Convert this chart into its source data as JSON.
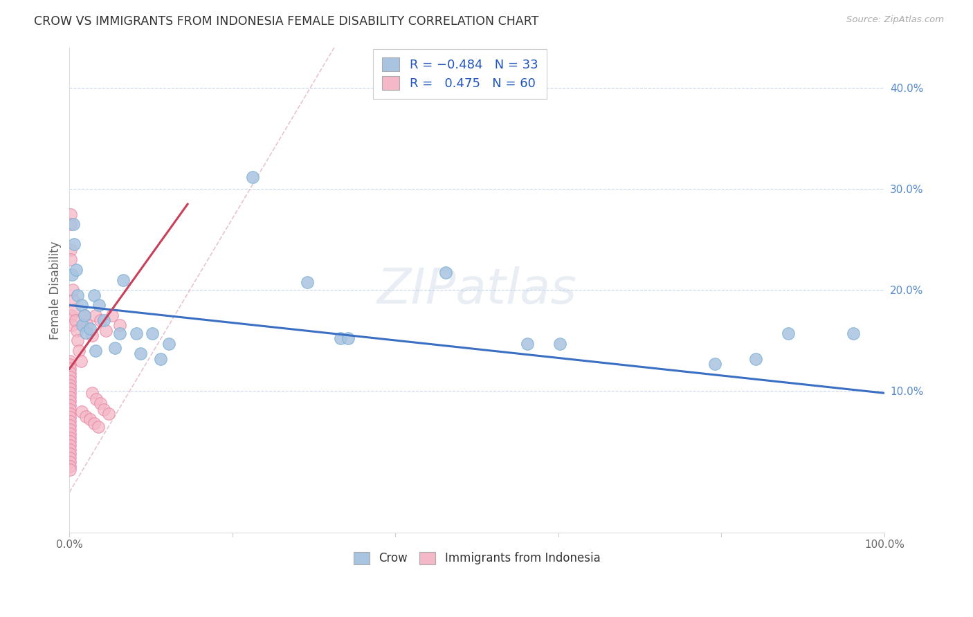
{
  "title": "CROW VS IMMIGRANTS FROM INDONESIA FEMALE DISABILITY CORRELATION CHART",
  "source": "Source: ZipAtlas.com",
  "ylabel": "Female Disability",
  "right_yticks": [
    "10.0%",
    "20.0%",
    "30.0%",
    "40.0%"
  ],
  "right_ytick_vals": [
    0.1,
    0.2,
    0.3,
    0.4
  ],
  "crow_color": "#a8c4e0",
  "crow_edge_color": "#7bafd4",
  "indo_color": "#f4b8c8",
  "indo_edge_color": "#e87fa0",
  "crow_line_color": "#3a6fc4",
  "indo_line_color": "#c8405a",
  "dashed_line_color": "#e0b0c0",
  "crow_R": -0.484,
  "crow_N": 33,
  "indo_R": 0.475,
  "indo_N": 60,
  "crow_points": [
    [
      0.003,
      0.215
    ],
    [
      0.005,
      0.265
    ],
    [
      0.006,
      0.245
    ],
    [
      0.008,
      0.22
    ],
    [
      0.01,
      0.195
    ],
    [
      0.015,
      0.185
    ],
    [
      0.016,
      0.165
    ],
    [
      0.018,
      0.175
    ],
    [
      0.02,
      0.158
    ],
    [
      0.025,
      0.162
    ],
    [
      0.03,
      0.195
    ],
    [
      0.032,
      0.14
    ],
    [
      0.036,
      0.185
    ],
    [
      0.042,
      0.17
    ],
    [
      0.056,
      0.143
    ],
    [
      0.062,
      0.157
    ],
    [
      0.066,
      0.21
    ],
    [
      0.082,
      0.157
    ],
    [
      0.087,
      0.137
    ],
    [
      0.102,
      0.157
    ],
    [
      0.112,
      0.132
    ],
    [
      0.122,
      0.147
    ],
    [
      0.225,
      0.312
    ],
    [
      0.292,
      0.208
    ],
    [
      0.333,
      0.152
    ],
    [
      0.342,
      0.152
    ],
    [
      0.462,
      0.217
    ],
    [
      0.562,
      0.147
    ],
    [
      0.602,
      0.147
    ],
    [
      0.792,
      0.127
    ],
    [
      0.842,
      0.132
    ],
    [
      0.882,
      0.157
    ],
    [
      0.962,
      0.157
    ]
  ],
  "indo_points": [
    [
      0.0005,
      0.13
    ],
    [
      0.0005,
      0.126
    ],
    [
      0.0005,
      0.122
    ],
    [
      0.0005,
      0.118
    ],
    [
      0.0005,
      0.114
    ],
    [
      0.0005,
      0.11
    ],
    [
      0.0005,
      0.106
    ],
    [
      0.0005,
      0.102
    ],
    [
      0.0005,
      0.098
    ],
    [
      0.0005,
      0.094
    ],
    [
      0.0005,
      0.09
    ],
    [
      0.0005,
      0.086
    ],
    [
      0.0005,
      0.082
    ],
    [
      0.0005,
      0.078
    ],
    [
      0.0005,
      0.074
    ],
    [
      0.0005,
      0.07
    ],
    [
      0.0005,
      0.066
    ],
    [
      0.0005,
      0.062
    ],
    [
      0.0005,
      0.058
    ],
    [
      0.0005,
      0.054
    ],
    [
      0.0005,
      0.05
    ],
    [
      0.0005,
      0.046
    ],
    [
      0.0005,
      0.042
    ],
    [
      0.0005,
      0.038
    ],
    [
      0.0005,
      0.034
    ],
    [
      0.0005,
      0.03
    ],
    [
      0.0005,
      0.026
    ],
    [
      0.0005,
      0.022
    ],
    [
      0.001,
      0.24
    ],
    [
      0.001,
      0.23
    ],
    [
      0.001,
      0.275
    ],
    [
      0.001,
      0.265
    ],
    [
      0.002,
      0.175
    ],
    [
      0.003,
      0.165
    ],
    [
      0.004,
      0.2
    ],
    [
      0.005,
      0.19
    ],
    [
      0.006,
      0.18
    ],
    [
      0.007,
      0.17
    ],
    [
      0.009,
      0.16
    ],
    [
      0.01,
      0.15
    ],
    [
      0.012,
      0.14
    ],
    [
      0.014,
      0.13
    ],
    [
      0.018,
      0.175
    ],
    [
      0.022,
      0.165
    ],
    [
      0.028,
      0.155
    ],
    [
      0.032,
      0.175
    ],
    [
      0.038,
      0.17
    ],
    [
      0.045,
      0.16
    ],
    [
      0.052,
      0.175
    ],
    [
      0.062,
      0.165
    ],
    [
      0.015,
      0.08
    ],
    [
      0.02,
      0.075
    ],
    [
      0.025,
      0.072
    ],
    [
      0.03,
      0.068
    ],
    [
      0.035,
      0.065
    ],
    [
      0.028,
      0.098
    ],
    [
      0.033,
      0.092
    ],
    [
      0.038,
      0.088
    ],
    [
      0.042,
      0.082
    ],
    [
      0.048,
      0.078
    ]
  ],
  "xlim": [
    0.0,
    1.0
  ],
  "ylim": [
    -0.04,
    0.44
  ],
  "crow_line_x": [
    0.0,
    1.0
  ],
  "crow_line_y": [
    0.185,
    0.098
  ],
  "indo_line_x": [
    0.0,
    0.145
  ],
  "indo_line_y": [
    0.122,
    0.285
  ],
  "dash_line_x": [
    0.0,
    0.325
  ],
  "dash_line_y": [
    0.0,
    0.44
  ]
}
